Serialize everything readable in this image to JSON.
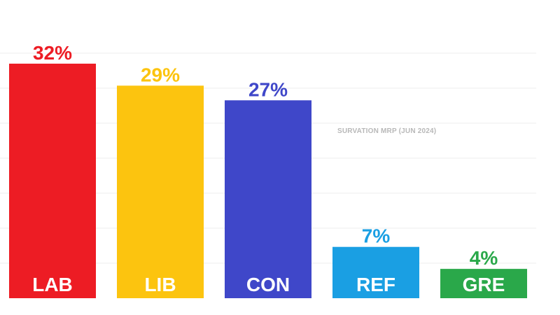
{
  "chart_data": {
    "type": "bar",
    "categories": [
      "LAB",
      "LIB",
      "CON",
      "REF",
      "GRE"
    ],
    "values": [
      32,
      29,
      27,
      7,
      4
    ],
    "value_labels": [
      "32%",
      "29%",
      "27%",
      "7%",
      "4%"
    ],
    "colors": [
      "#ed1c24",
      "#fcc40f",
      "#3f47c9",
      "#1a9fe3",
      "#2aa84a"
    ],
    "annotation": "SURVATION MRP (JUN 2024)",
    "ylim": [
      0,
      34
    ],
    "grid": true,
    "legend": "none"
  }
}
